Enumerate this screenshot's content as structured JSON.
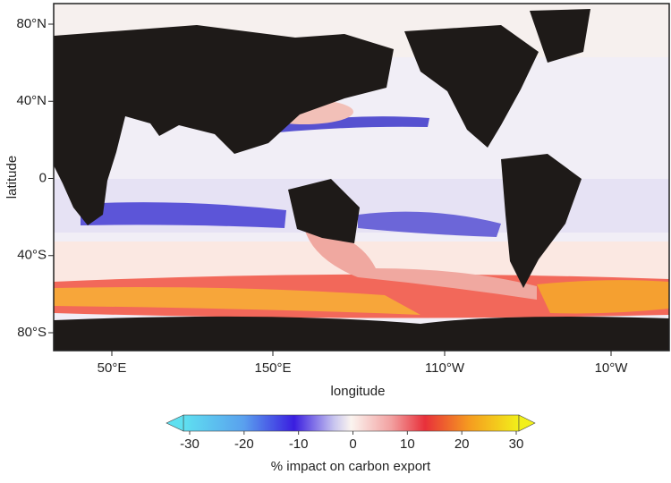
{
  "map": {
    "ylabel": "latitude",
    "xlabel": "longitude",
    "yticks": [
      "80°N",
      "40°N",
      "0",
      "40°S",
      "80°S"
    ],
    "xticks": [
      "50°E",
      "150°E",
      "110°W",
      "10°W"
    ]
  },
  "colorbar": {
    "label": "% impact on carbon export",
    "lim": [
      -30,
      30
    ],
    "ticks": [
      -30,
      -20,
      -10,
      0,
      10,
      20,
      30
    ]
  }
}
